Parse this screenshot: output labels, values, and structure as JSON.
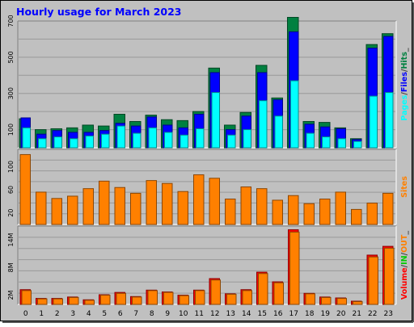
{
  "title": "Hourly usage for March 2023",
  "colors": {
    "frame_bg": "#c0c0c0",
    "plot_bg": "#c0c0c0",
    "grid": "#999999",
    "hits": "#008040",
    "files": "#0000ff",
    "pages": "#00ffff",
    "sites": "#ff8000",
    "volume": "#ff0000",
    "in": "#00cc00",
    "out": "#ff8000",
    "title": "#0000ff"
  },
  "chart_data": [
    {
      "type": "bar",
      "panel": "hits-files-pages",
      "categories": [
        "0",
        "1",
        "2",
        "3",
        "4",
        "5",
        "6",
        "7",
        "8",
        "9",
        "10",
        "11",
        "12",
        "13",
        "14",
        "15",
        "16",
        "17",
        "18",
        "19",
        "20",
        "21",
        "22",
        "23"
      ],
      "ylim": [
        0,
        700
      ],
      "yticks": [
        "100",
        "300",
        "500",
        "700"
      ],
      "right_label": [
        "Pages",
        "/",
        "Files",
        "/",
        "Hits",
        "_"
      ],
      "series": [
        {
          "name": "Hits",
          "values": [
            160,
            100,
            105,
            110,
            125,
            120,
            185,
            145,
            180,
            155,
            150,
            200,
            440,
            125,
            195,
            455,
            275,
            720,
            145,
            140,
            110,
            50,
            570,
            630
          ]
        },
        {
          "name": "Files",
          "values": [
            165,
            75,
            95,
            85,
            85,
            95,
            135,
            120,
            170,
            125,
            110,
            185,
            415,
            100,
            175,
            415,
            265,
            640,
            130,
            115,
            105,
            45,
            550,
            615
          ]
        },
        {
          "name": "Pages",
          "values": [
            110,
            50,
            60,
            50,
            65,
            75,
            120,
            80,
            110,
            85,
            70,
            105,
            305,
            70,
            100,
            260,
            175,
            370,
            80,
            60,
            50,
            35,
            285,
            305
          ]
        }
      ]
    },
    {
      "type": "bar",
      "panel": "sites",
      "categories": [
        "0",
        "1",
        "2",
        "3",
        "4",
        "5",
        "6",
        "7",
        "8",
        "9",
        "10",
        "11",
        "12",
        "13",
        "14",
        "15",
        "16",
        "17",
        "18",
        "19",
        "20",
        "21",
        "22",
        "23"
      ],
      "ylim": [
        0,
        130
      ],
      "yticks": [
        "20",
        "60",
        "100"
      ],
      "right_label": [
        "Sites"
      ],
      "series": [
        {
          "name": "Sites",
          "values": [
            121,
            56,
            45,
            49,
            62,
            75,
            64,
            54,
            76,
            71,
            57,
            86,
            80,
            44,
            65,
            62,
            42,
            50,
            36,
            44,
            56,
            26,
            37,
            54
          ]
        }
      ]
    },
    {
      "type": "bar",
      "panel": "volume",
      "categories": [
        "0",
        "1",
        "2",
        "3",
        "4",
        "5",
        "6",
        "7",
        "8",
        "9",
        "10",
        "11",
        "12",
        "13",
        "14",
        "15",
        "16",
        "17",
        "18",
        "19",
        "20",
        "21",
        "22",
        "23"
      ],
      "ylim": [
        0,
        17
      ],
      "yticks": [
        "2M",
        "8M",
        "14M"
      ],
      "right_label": [
        "Volume",
        "/",
        "IN",
        "/",
        "OUT",
        "_"
      ],
      "series": [
        {
          "name": "Volume",
          "values": [
            3.2,
            1.3,
            1.3,
            1.6,
            1.0,
            2.1,
            2.6,
            1.7,
            3.1,
            2.7,
            2.0,
            3.1,
            5.6,
            2.3,
            3.2,
            7.0,
            4.9,
            16.2,
            2.4,
            1.6,
            1.4,
            0.7,
            10.7,
            12.6
          ]
        },
        {
          "name": "OUT",
          "values": [
            3.0,
            1.2,
            1.2,
            1.5,
            0.9,
            2.0,
            2.4,
            1.6,
            3.0,
            2.6,
            1.9,
            3.0,
            5.3,
            2.2,
            3.0,
            6.7,
            4.7,
            15.7,
            2.3,
            1.5,
            1.3,
            0.6,
            10.3,
            12.2
          ]
        }
      ]
    }
  ],
  "xaxis_labels": [
    "0",
    "1",
    "2",
    "3",
    "4",
    "5",
    "6",
    "7",
    "8",
    "9",
    "10",
    "11",
    "12",
    "13",
    "14",
    "15",
    "16",
    "17",
    "18",
    "19",
    "20",
    "21",
    "22",
    "23"
  ]
}
